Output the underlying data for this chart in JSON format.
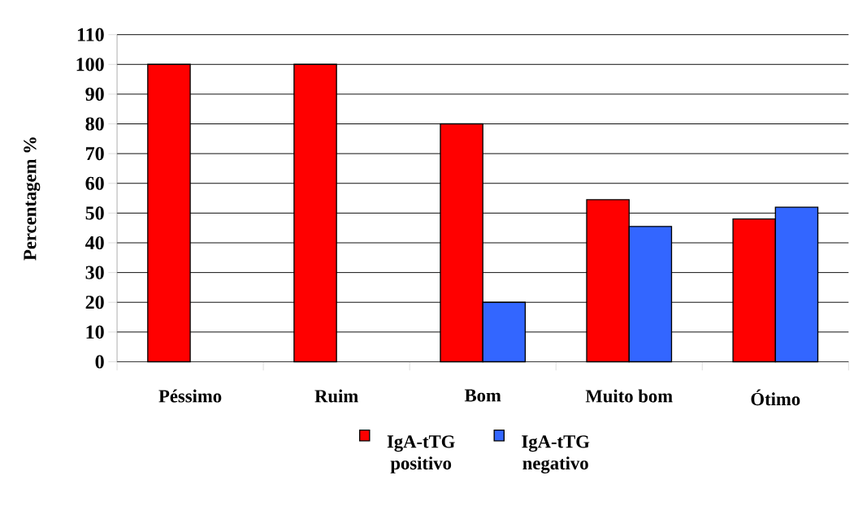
{
  "chart_data": {
    "type": "bar",
    "ylabel": "Percentagem %",
    "categories": [
      "Péssimo",
      "Ruim",
      "Bom",
      "Muito bom",
      "Ótimo"
    ],
    "series": [
      {
        "name": "IgA-tTG positivo",
        "color": "#ff0000",
        "values": [
          100,
          100,
          80,
          54.5,
          48
        ]
      },
      {
        "name": "IgA-tTG negativo",
        "color": "#3366ff",
        "values": [
          null,
          null,
          20,
          45.5,
          52
        ]
      }
    ],
    "ylim": [
      0,
      110
    ],
    "yticks": [
      0,
      10,
      20,
      30,
      40,
      50,
      60,
      70,
      80,
      90,
      100,
      110
    ],
    "grid": "y",
    "legend": "bottom"
  }
}
